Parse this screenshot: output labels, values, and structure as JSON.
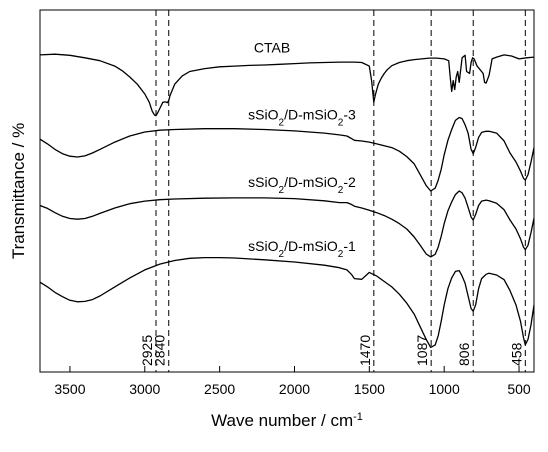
{
  "chart_data": {
    "type": "line",
    "xlabel_main": "Wave number / cm",
    "xlabel_sup": "-1",
    "ylabel": "Transmittance / %",
    "xlim": [
      3700,
      400
    ],
    "x_reversed": true,
    "xticks": [
      3500,
      3000,
      2500,
      2000,
      1500,
      1000,
      500
    ],
    "ytick_labels": false,
    "reference_lines": [
      {
        "x": 2925,
        "label": "2925"
      },
      {
        "x": 2840,
        "label": "2840"
      },
      {
        "x": 1470,
        "label": "1470"
      },
      {
        "x": 1087,
        "label": "1087"
      },
      {
        "x": 806,
        "label": "806"
      },
      {
        "x": 458,
        "label": "458"
      }
    ],
    "y_scale": "relative transmittance, each trace offset vertically (0 = bottom of plot, 100 = top)",
    "series": [
      {
        "name": "CTAB",
        "label_parts": [
          [
            "CTAB",
            ""
          ]
        ],
        "x": [
          3700,
          3600,
          3500,
          3400,
          3300,
          3200,
          3150,
          3100,
          3050,
          3000,
          2970,
          2950,
          2935,
          2925,
          2915,
          2900,
          2880,
          2860,
          2850,
          2840,
          2830,
          2800,
          2750,
          2700,
          2600,
          2500,
          2400,
          2300,
          2200,
          2100,
          2000,
          1900,
          1800,
          1700,
          1600,
          1550,
          1500,
          1485,
          1470,
          1460,
          1450,
          1440,
          1420,
          1400,
          1380,
          1350,
          1300,
          1250,
          1200,
          1150,
          1100,
          1050,
          1000,
          970,
          960,
          950,
          940,
          930,
          920,
          910,
          900,
          880,
          860,
          850,
          830,
          820,
          810,
          800,
          780,
          760,
          740,
          730,
          720,
          700,
          680,
          650,
          600,
          550,
          500,
          450,
          400
        ],
        "y": [
          87.6,
          87.8,
          87.5,
          86.8,
          86.0,
          84.5,
          83.2,
          81.5,
          79.5,
          76.8,
          74.5,
          72.0,
          71.0,
          70.8,
          71.5,
          72.8,
          74.5,
          74.6,
          74.4,
          75.0,
          76.5,
          79.5,
          81.8,
          83.0,
          83.8,
          84.3,
          84.5,
          84.7,
          84.8,
          85.0,
          85.2,
          85.4,
          85.5,
          85.6,
          85.6,
          85.5,
          84.5,
          80.5,
          74.5,
          76.5,
          78.0,
          79.5,
          81.2,
          82.5,
          83.5,
          84.6,
          85.5,
          86.0,
          86.3,
          86.5,
          86.7,
          86.7,
          86.5,
          86.0,
          81.5,
          77.5,
          80.5,
          78.0,
          81.5,
          83.0,
          80.0,
          86.8,
          87.5,
          83.0,
          82.5,
          85.5,
          86.8,
          86.5,
          84.5,
          83.5,
          82.5,
          80.0,
          79.8,
          82.0,
          86.5,
          87.0,
          87.6,
          87.3,
          86.5,
          86.8,
          87.0
        ]
      },
      {
        "name": "sSiO2/D-mSiO2-3",
        "label_parts": [
          [
            "sSiO",
            ""
          ],
          [
            "2",
            "sub"
          ],
          [
            "/D-mSiO",
            ""
          ],
          [
            "2",
            "sub"
          ],
          [
            "-3",
            ""
          ]
        ],
        "x": [
          3700,
          3650,
          3600,
          3550,
          3500,
          3450,
          3400,
          3350,
          3300,
          3200,
          3100,
          3000,
          2900,
          2800,
          2600,
          2400,
          2200,
          2000,
          1800,
          1700,
          1650,
          1620,
          1600,
          1550,
          1500,
          1450,
          1400,
          1350,
          1300,
          1250,
          1200,
          1160,
          1120,
          1090,
          1060,
          1040,
          1020,
          1000,
          975,
          950,
          925,
          900,
          880,
          860,
          840,
          820,
          806,
          790,
          770,
          750,
          720,
          700,
          650,
          600,
          560,
          520,
          490,
          470,
          458,
          440,
          420,
          400
        ],
        "y": [
          64.3,
          63.0,
          61.5,
          60.3,
          59.6,
          59.4,
          59.7,
          60.5,
          61.5,
          63.5,
          65.2,
          66.3,
          66.8,
          67.0,
          67.2,
          67.2,
          67.0,
          66.6,
          66.0,
          65.5,
          65.2,
          64.5,
          64.0,
          63.8,
          63.5,
          63.0,
          62.5,
          62.0,
          61.0,
          59.5,
          57.5,
          54.5,
          51.5,
          50.0,
          50.8,
          53.0,
          56.0,
          60.0,
          64.0,
          67.0,
          69.5,
          70.3,
          70.0,
          68.3,
          66.0,
          61.5,
          60.3,
          62.0,
          64.8,
          66.2,
          66.5,
          66.5,
          66.0,
          63.8,
          60.5,
          58.0,
          55.5,
          53.5,
          53.0,
          54.5,
          58.0,
          62.0
        ]
      },
      {
        "name": "sSiO2/D-mSiO2-2",
        "label_parts": [
          [
            "sSiO",
            ""
          ],
          [
            "2",
            "sub"
          ],
          [
            "/D-mSiO",
            ""
          ],
          [
            "2",
            "sub"
          ],
          [
            "-2",
            ""
          ]
        ],
        "x": [
          3700,
          3650,
          3600,
          3550,
          3500,
          3450,
          3400,
          3350,
          3300,
          3200,
          3100,
          3000,
          2900,
          2800,
          2600,
          2400,
          2200,
          2000,
          1800,
          1700,
          1650,
          1620,
          1600,
          1550,
          1500,
          1450,
          1400,
          1350,
          1300,
          1250,
          1200,
          1160,
          1120,
          1090,
          1060,
          1040,
          1020,
          1000,
          975,
          950,
          925,
          900,
          880,
          860,
          840,
          820,
          806,
          790,
          770,
          750,
          720,
          700,
          650,
          600,
          560,
          520,
          490,
          470,
          458,
          440,
          420,
          400
        ],
        "y": [
          46.0,
          45.2,
          44.0,
          43.0,
          42.4,
          42.2,
          42.4,
          43.0,
          43.8,
          45.3,
          46.5,
          47.2,
          47.6,
          47.8,
          48.0,
          48.1,
          48.1,
          47.9,
          47.3,
          46.8,
          46.8,
          46.3,
          45.8,
          45.3,
          44.7,
          44.0,
          43.2,
          42.2,
          41.0,
          39.5,
          37.3,
          35.0,
          32.6,
          31.8,
          32.5,
          34.5,
          37.5,
          41.0,
          44.5,
          47.0,
          49.0,
          50.0,
          49.5,
          48.0,
          45.5,
          42.8,
          42.0,
          43.5,
          46.0,
          47.2,
          47.5,
          47.3,
          46.6,
          44.8,
          42.0,
          39.5,
          36.8,
          34.5,
          33.8,
          35.0,
          38.5,
          42.5
        ]
      },
      {
        "name": "sSiO2/D-mSiO2-1",
        "label_parts": [
          [
            "sSiO",
            ""
          ],
          [
            "2",
            "sub"
          ],
          [
            "/D-mSiO",
            ""
          ],
          [
            "2",
            "sub"
          ],
          [
            "-1",
            ""
          ]
        ],
        "x": [
          3700,
          3650,
          3600,
          3550,
          3500,
          3450,
          3400,
          3350,
          3300,
          3200,
          3100,
          3000,
          2900,
          2800,
          2700,
          2600,
          2500,
          2400,
          2200,
          2000,
          1800,
          1700,
          1650,
          1620,
          1600,
          1550,
          1500,
          1450,
          1400,
          1350,
          1300,
          1250,
          1200,
          1160,
          1120,
          1090,
          1060,
          1040,
          1020,
          1000,
          975,
          950,
          925,
          900,
          880,
          860,
          840,
          820,
          806,
          790,
          770,
          750,
          720,
          700,
          650,
          600,
          560,
          520,
          490,
          470,
          458,
          440,
          420,
          400
        ],
        "y": [
          24.8,
          23.5,
          22.0,
          20.8,
          19.8,
          19.4,
          19.5,
          20.0,
          21.0,
          23.5,
          26.0,
          28.2,
          29.8,
          30.8,
          31.4,
          31.6,
          31.6,
          31.5,
          31.0,
          30.4,
          29.5,
          28.8,
          28.2,
          27.0,
          25.8,
          25.6,
          27.5,
          26.5,
          25.0,
          23.5,
          21.5,
          19.0,
          16.0,
          12.5,
          9.0,
          6.8,
          7.5,
          10.0,
          14.0,
          18.5,
          23.0,
          26.0,
          27.8,
          28.0,
          26.5,
          24.5,
          21.0,
          17.5,
          16.8,
          18.5,
          23.0,
          25.8,
          27.0,
          27.3,
          26.8,
          25.5,
          22.5,
          18.5,
          14.0,
          9.5,
          7.5,
          9.0,
          13.0,
          18.5
        ]
      }
    ]
  }
}
